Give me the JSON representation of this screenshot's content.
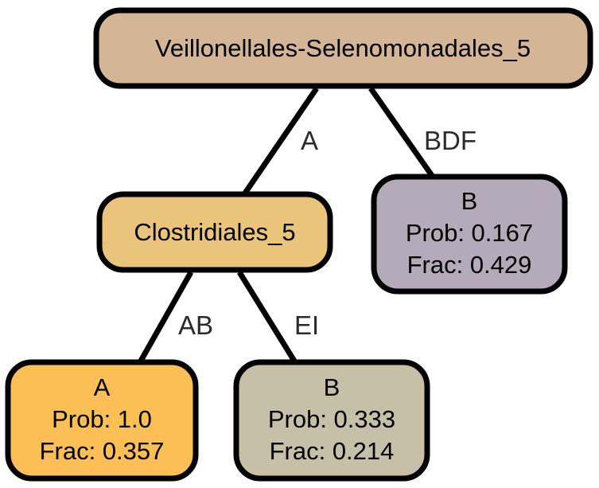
{
  "nodes": {
    "root": {
      "label": "Veillonellales-Selenomonadales_5",
      "fill": "#d4b595"
    },
    "mid": {
      "label": "Clostridiales_5",
      "fill": "#ebc47c"
    },
    "leaf_bdf": {
      "class_label": "B",
      "prob": "Prob: 0.167",
      "frac": "Frac: 0.429",
      "fill": "#b4aab9"
    },
    "leaf_ab": {
      "class_label": "A",
      "prob": "Prob: 1.0",
      "frac": "Frac: 0.357",
      "fill": "#fbbf56"
    },
    "leaf_ei": {
      "class_label": "B",
      "prob": "Prob: 0.333",
      "frac": "Frac: 0.214",
      "fill": "#c7c0a8"
    }
  },
  "edges": {
    "root_to_mid": "A",
    "root_to_bdf": "BDF",
    "mid_to_ab": "AB",
    "mid_to_ei": "EI"
  }
}
